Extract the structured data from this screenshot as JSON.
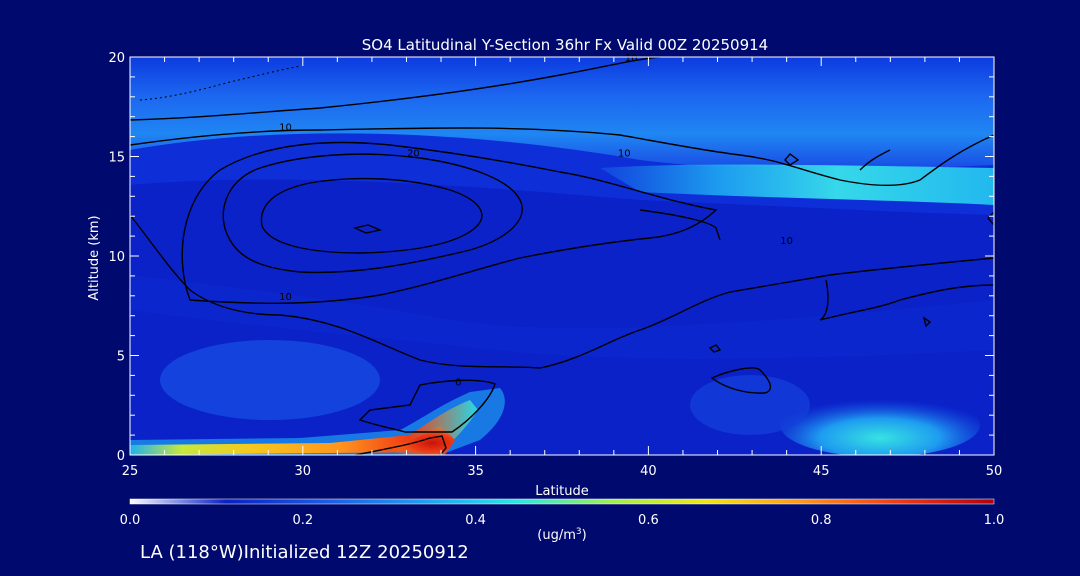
{
  "chart_data": {
    "type": "heatmap",
    "title": "SO4 Latitudinal Y-Section 36hr  Fx Valid 00Z 20250914",
    "xlabel": "Latitude",
    "ylabel": "Altitude (km)",
    "xlim": [
      25,
      50
    ],
    "ylim": [
      0,
      20
    ],
    "x_ticks": [
      25,
      30,
      35,
      40,
      45,
      50
    ],
    "y_ticks": [
      0,
      5,
      10,
      15,
      20
    ],
    "colorbar": {
      "unit_label": "(ug/m",
      "unit_sup": "3",
      "unit_close": ")",
      "range": [
        0.0,
        1.0
      ],
      "ticks": [
        "0.0",
        "0.2",
        "0.4",
        "0.6",
        "0.8",
        "1.0"
      ],
      "colors": [
        "#ffffff",
        "#0a20c8",
        "#1a5ae6",
        "#1e9cf0",
        "#28e6e6",
        "#a0f050",
        "#f0e614",
        "#ff961e",
        "#f03c14",
        "#b4000a"
      ]
    },
    "contour_labels": [
      {
        "value": "10",
        "lat": 29.5,
        "alt": 16.5
      },
      {
        "value": "20",
        "lat": 33.2,
        "alt": 15.2
      },
      {
        "value": "10",
        "lat": 39.3,
        "alt": 15.2
      },
      {
        "value": "10",
        "lat": 44.0,
        "alt": 10.8
      },
      {
        "value": "10",
        "lat": 29.5,
        "alt": 8.0
      },
      {
        "value": "10",
        "lat": 39.5,
        "alt": 20.0
      },
      {
        "value": "0",
        "lat": 34.5,
        "alt": 3.7
      }
    ],
    "concentration_features": [
      {
        "name": "surface plume",
        "lat_range": [
          25,
          35
        ],
        "alt_range": [
          0,
          2
        ],
        "max_value": 1.0
      },
      {
        "name": "upper layer",
        "lat_range": [
          25,
          50
        ],
        "alt_range": [
          13,
          20
        ],
        "max_value": 0.45
      },
      {
        "name": "low-level patch north",
        "lat_range": [
          44,
          50
        ],
        "alt_range": [
          0,
          3
        ],
        "max_value": 0.4
      }
    ]
  },
  "footer": {
    "location": "LA (118°W)Initialized 12Z 20250912"
  }
}
